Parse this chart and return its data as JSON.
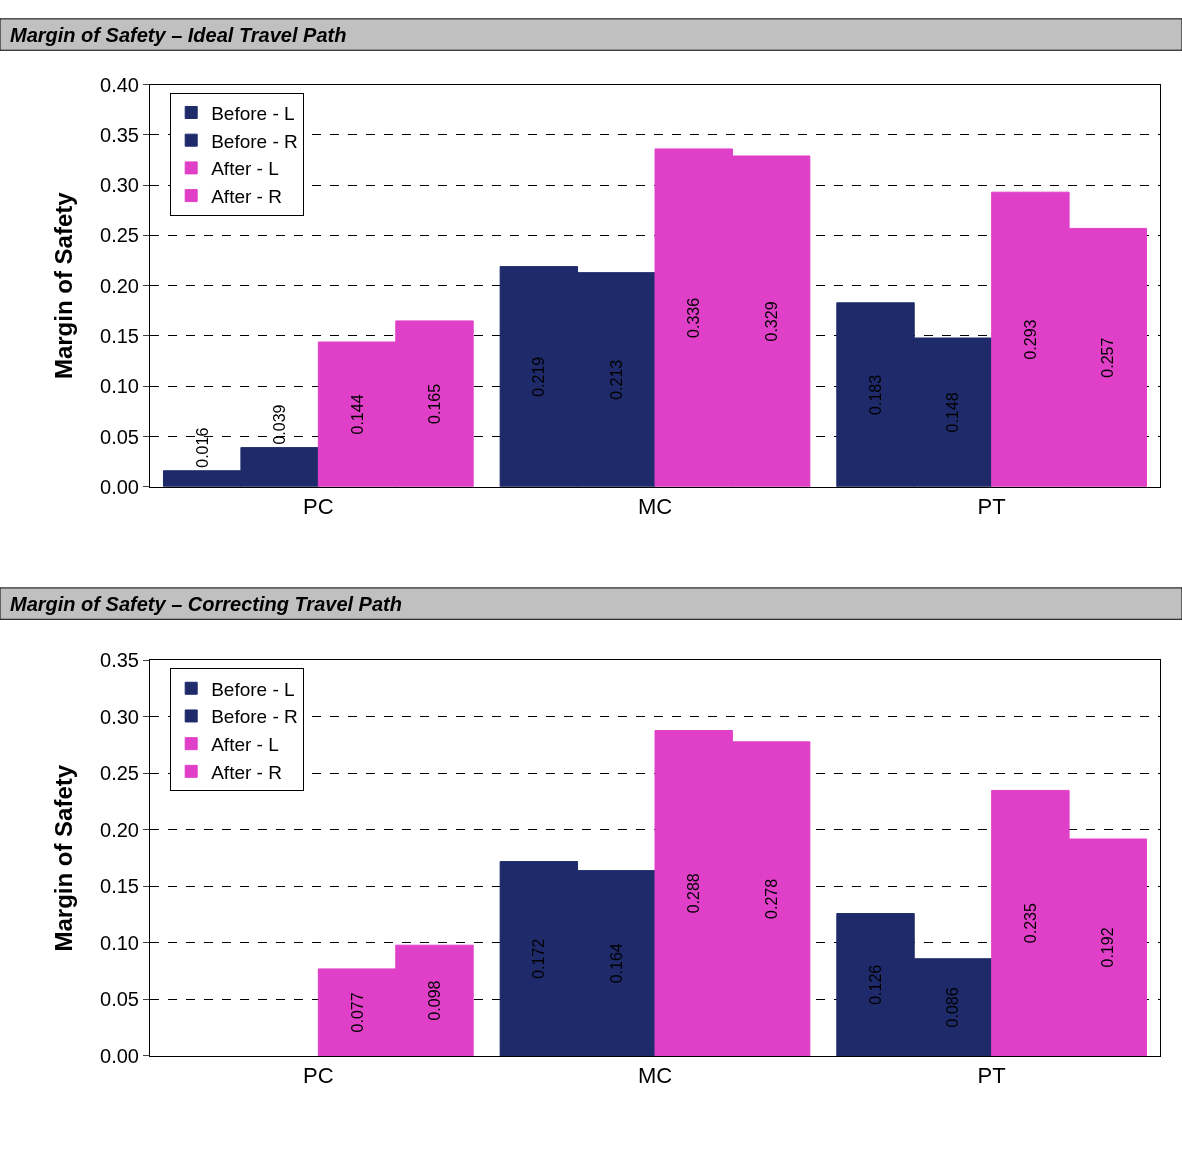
{
  "chart_data": [
    {
      "type": "bar",
      "title": "Margin of Safety – Ideal Travel Path",
      "ylabel": "Margin of Safety",
      "categories": [
        "PC",
        "MC",
        "PT"
      ],
      "series": [
        {
          "name": "Before - L",
          "color": "#1f2a6b",
          "values": [
            0.016,
            0.219,
            0.183
          ]
        },
        {
          "name": "Before - R",
          "color": "#1f2a6b",
          "values": [
            0.039,
            0.213,
            0.148
          ]
        },
        {
          "name": "After - L",
          "color": "#e040c8",
          "values": [
            0.144,
            0.336,
            0.293
          ]
        },
        {
          "name": "After - R",
          "color": "#e040c8",
          "values": [
            0.165,
            0.329,
            0.257
          ]
        }
      ],
      "ylim": [
        0,
        0.4
      ],
      "yticks": [
        {
          "value": 0,
          "label": "0.00"
        },
        {
          "value": 0.05,
          "label": "0.05"
        },
        {
          "value": 0.1,
          "label": "0.10"
        },
        {
          "value": 0.15,
          "label": "0.15"
        },
        {
          "value": 0.2,
          "label": "0.20"
        },
        {
          "value": 0.25,
          "label": "0.25"
        },
        {
          "value": 0.3,
          "label": "0.30"
        },
        {
          "value": 0.35,
          "label": "0.35"
        },
        {
          "value": 0.4,
          "label": "0.40"
        }
      ],
      "grid": "y",
      "legend": "top left",
      "data_labels": true
    },
    {
      "type": "bar",
      "title": "Margin of Safety – Correcting Travel Path",
      "ylabel": "Margin of Safety",
      "categories": [
        "PC",
        "MC",
        "PT"
      ],
      "series": [
        {
          "name": "Before - L",
          "color": "#1f2a6b",
          "values": [
            null,
            0.172,
            0.126
          ]
        },
        {
          "name": "Before - R",
          "color": "#1f2a6b",
          "values": [
            null,
            0.164,
            0.086
          ]
        },
        {
          "name": "After - L",
          "color": "#e040c8",
          "values": [
            0.077,
            0.288,
            0.235
          ]
        },
        {
          "name": "After - R",
          "color": "#e040c8",
          "values": [
            0.098,
            0.278,
            0.192
          ]
        }
      ],
      "ylim": [
        0,
        0.35
      ],
      "yticks": [
        {
          "value": 0,
          "label": "0.00"
        },
        {
          "value": 0.05,
          "label": "0.05"
        },
        {
          "value": 0.1,
          "label": "0.10"
        },
        {
          "value": 0.15,
          "label": "0.15"
        },
        {
          "value": 0.2,
          "label": "0.20"
        },
        {
          "value": 0.25,
          "label": "0.25"
        },
        {
          "value": 0.3,
          "label": "0.30"
        },
        {
          "value": 0.35,
          "label": "0.35"
        }
      ],
      "grid": "y",
      "legend": "top left",
      "data_labels": true
    }
  ]
}
